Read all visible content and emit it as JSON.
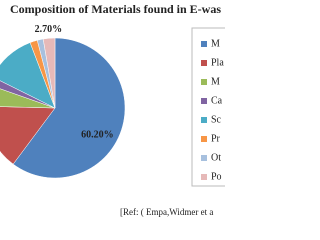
{
  "chart_data": {
    "type": "pie",
    "title": "Composition of Materials found in E-was",
    "source": "[Ref: ( Empa,Widmer et a",
    "categories": [
      "M",
      "Pla",
      "M",
      "Ca",
      "Sc",
      "Pr",
      "Ot",
      "Po"
    ],
    "values": [
      60.2,
      15.21,
      4.97,
      1.97,
      11.87,
      1.71,
      1.38,
      2.7
    ],
    "value_labels": [
      "60.20%",
      null,
      null,
      null,
      null,
      null,
      null,
      "2.70%"
    ],
    "colors": [
      "#4f81bd",
      "#c0504d",
      "#9bbb59",
      "#8064a2",
      "#4bacc6",
      "#f79646",
      "#a7c0de",
      "#e6b9b8"
    ],
    "legend": "right"
  }
}
